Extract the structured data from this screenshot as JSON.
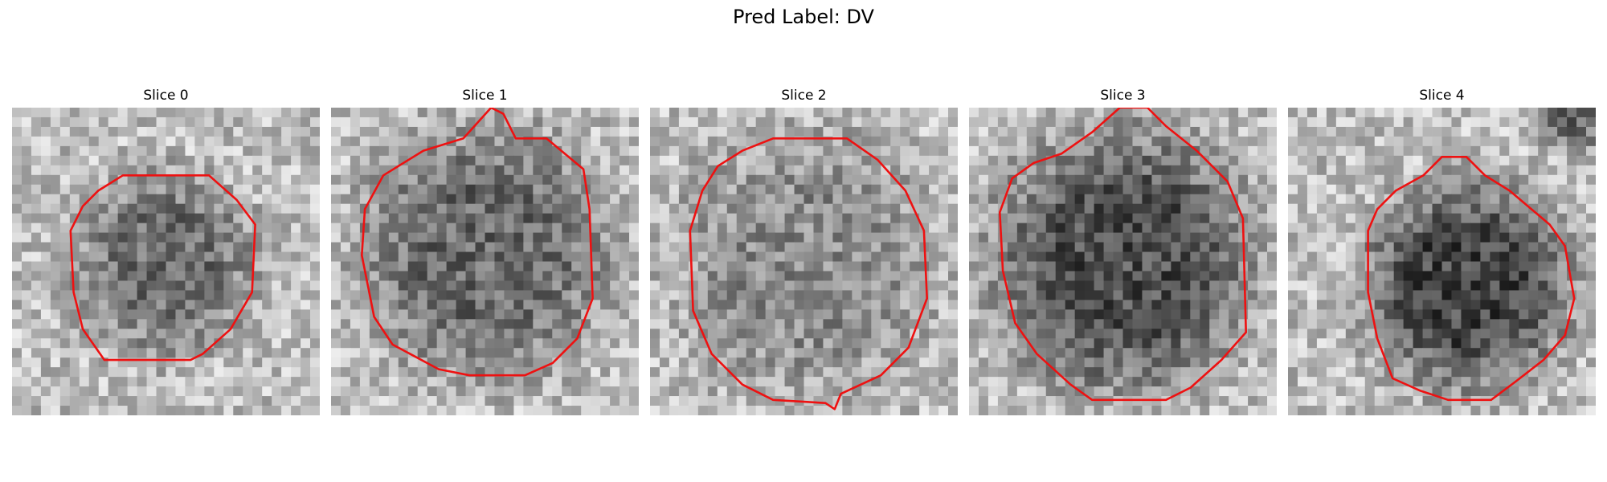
{
  "title": "Pred Label: DV",
  "panels": [
    {
      "title": "Slice 0",
      "seed": 11,
      "darkness": 0.55,
      "contour_color": "#ee1111",
      "region": "small disc, center-left"
    },
    {
      "title": "Slice 1",
      "seed": 23,
      "darkness": 0.6,
      "contour_color": "#ee1111",
      "region": "large disc"
    },
    {
      "title": "Slice 2",
      "seed": 37,
      "darkness": 0.35,
      "contour_color": "#ee1111",
      "region": "large disc, lighter"
    },
    {
      "title": "Slice 3",
      "seed": 41,
      "darkness": 0.8,
      "contour_color": "#ee1111",
      "region": "large disc, darkest"
    },
    {
      "title": "Slice 4",
      "seed": 53,
      "darkness": 0.85,
      "contour_color": "#ee1111",
      "region": "medium disc, lower-right"
    }
  ]
}
